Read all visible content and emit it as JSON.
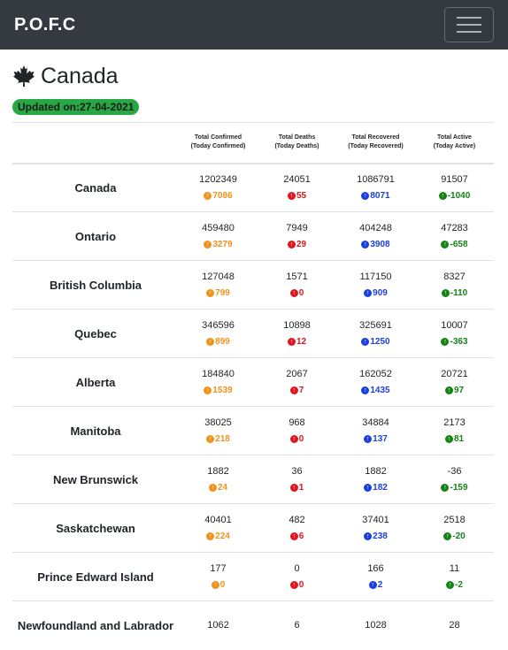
{
  "navbar": {
    "brand": "P.O.F.C"
  },
  "header": {
    "title": "Canada",
    "updated": "Updated on:27-04-2021"
  },
  "table": {
    "headers": [
      {
        "main": "Total Confirmed",
        "sub": "(Today Confirmed)"
      },
      {
        "main": "Total Deaths",
        "sub": "(Today Deaths)"
      },
      {
        "main": "Total Recovered",
        "sub": "(Today Recovered)"
      },
      {
        "main": "Total Active",
        "sub": "(Today Active)"
      }
    ],
    "rows": [
      {
        "name": "Canada",
        "confirmed": "1202349",
        "confirmed_today": "7086",
        "deaths": "24051",
        "deaths_today": "55",
        "recovered": "1086791",
        "recovered_today": "8071",
        "active": "91507",
        "active_today": "-1040"
      },
      {
        "name": "Ontario",
        "confirmed": "459480",
        "confirmed_today": "3279",
        "deaths": "7949",
        "deaths_today": "29",
        "recovered": "404248",
        "recovered_today": "3908",
        "active": "47283",
        "active_today": "-658"
      },
      {
        "name": "British Columbia",
        "confirmed": "127048",
        "confirmed_today": "799",
        "deaths": "1571",
        "deaths_today": "0",
        "recovered": "117150",
        "recovered_today": "909",
        "active": "8327",
        "active_today": "-110"
      },
      {
        "name": "Quebec",
        "confirmed": "346596",
        "confirmed_today": "899",
        "deaths": "10898",
        "deaths_today": "12",
        "recovered": "325691",
        "recovered_today": "1250",
        "active": "10007",
        "active_today": "-363"
      },
      {
        "name": "Alberta",
        "confirmed": "184840",
        "confirmed_today": "1539",
        "deaths": "2067",
        "deaths_today": "7",
        "recovered": "162052",
        "recovered_today": "1435",
        "active": "20721",
        "active_today": "97"
      },
      {
        "name": "Manitoba",
        "confirmed": "38025",
        "confirmed_today": "218",
        "deaths": "968",
        "deaths_today": "0",
        "recovered": "34884",
        "recovered_today": "137",
        "active": "2173",
        "active_today": "81"
      },
      {
        "name": "New Brunswick",
        "confirmed": "1882",
        "confirmed_today": "24",
        "deaths": "36",
        "deaths_today": "1",
        "recovered": "1882",
        "recovered_today": "182",
        "active": "-36",
        "active_today": "-159"
      },
      {
        "name": "Saskatchewan",
        "confirmed": "40401",
        "confirmed_today": "224",
        "deaths": "482",
        "deaths_today": "6",
        "recovered": "37401",
        "recovered_today": "238",
        "active": "2518",
        "active_today": "-20"
      },
      {
        "name": "Prince Edward Island",
        "confirmed": "177",
        "confirmed_today": "0",
        "deaths": "0",
        "deaths_today": "0",
        "recovered": "166",
        "recovered_today": "2",
        "active": "11",
        "active_today": "-2"
      },
      {
        "name": "Newfoundland and Labrador",
        "confirmed": "1062",
        "confirmed_today": "",
        "deaths": "6",
        "deaths_today": "",
        "recovered": "1028",
        "recovered_today": "",
        "active": "28",
        "active_today": ""
      }
    ]
  },
  "colors": {
    "navbar": "#343a40",
    "badge": "#28a745",
    "confirmed": "#f0921b",
    "deaths": "#e0161e",
    "recovered": "#1a3fe0",
    "active": "#148214"
  },
  "icons": {
    "flag": "maple-leaf-icon",
    "menu": "hamburger-menu-icon",
    "delta": "arrow-up-circle-icon"
  }
}
